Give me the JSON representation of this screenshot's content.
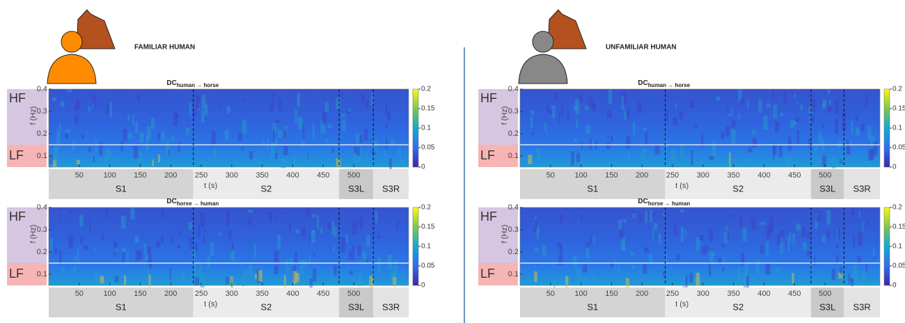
{
  "panels": [
    {
      "title": "FAMILIAR HUMAN"
    },
    {
      "title": "UNFAMILIAR HUMAN"
    }
  ],
  "chart_data": [
    {
      "type": "heatmap",
      "title": "DC",
      "title_subscript": "human → horse",
      "x_label": "t (s)",
      "y_label": "f (Hz)",
      "xlim": [
        0,
        590
      ],
      "xticks": [
        50,
        100,
        150,
        200,
        250,
        300,
        350,
        400,
        450,
        500
      ],
      "ylim": [
        0.05,
        0.4
      ],
      "yticks": [
        0.1,
        0.2,
        0.3,
        0.4
      ],
      "clim": [
        0,
        0.2
      ],
      "cticks": [
        0,
        0.05,
        0.1,
        0.15,
        0.2
      ],
      "band_split": 0.15,
      "band_labels": [
        "HF",
        "LF"
      ],
      "boundaries": [
        237,
        476,
        532
      ],
      "segments": [
        "S1",
        "S2",
        "S3L",
        "S3R"
      ]
    },
    {
      "type": "heatmap",
      "title": "DC",
      "title_subscript": "horse → human",
      "x_label": "t (s)",
      "y_label": "f (Hz)",
      "xlim": [
        0,
        590
      ],
      "xticks": [
        50,
        100,
        150,
        200,
        250,
        300,
        350,
        400,
        450,
        500
      ],
      "ylim": [
        0.05,
        0.4
      ],
      "yticks": [
        0.1,
        0.2,
        0.3,
        0.4
      ],
      "clim": [
        0,
        0.2
      ],
      "cticks": [
        0,
        0.05,
        0.1,
        0.15,
        0.2
      ],
      "band_split": 0.15,
      "band_labels": [
        "HF",
        "LF"
      ],
      "boundaries": [
        237,
        476,
        532
      ],
      "segments": [
        "S1",
        "S2",
        "S3L",
        "S3R"
      ]
    },
    {
      "type": "heatmap",
      "title": "DC",
      "title_subscript": "human → horse",
      "x_label": "t (s)",
      "y_label": "f (Hz)",
      "xlim": [
        0,
        590
      ],
      "xticks": [
        50,
        100,
        150,
        200,
        250,
        300,
        350,
        400,
        450,
        500
      ],
      "ylim": [
        0.05,
        0.4
      ],
      "yticks": [
        0.1,
        0.2,
        0.3,
        0.4
      ],
      "clim": [
        0,
        0.2
      ],
      "cticks": [
        0,
        0.05,
        0.1,
        0.15,
        0.2
      ],
      "band_split": 0.15,
      "band_labels": [
        "HF",
        "LF"
      ],
      "boundaries": [
        238,
        477,
        531
      ],
      "segments": [
        "S1",
        "S2",
        "S3L",
        "S3R"
      ]
    },
    {
      "type": "heatmap",
      "title": "DC",
      "title_subscript": "horse → human",
      "x_label": "t (s)",
      "y_label": "f (Hz)",
      "xlim": [
        0,
        590
      ],
      "xticks": [
        50,
        100,
        150,
        200,
        250,
        300,
        350,
        400,
        450,
        500
      ],
      "ylim": [
        0.05,
        0.4
      ],
      "yticks": [
        0.1,
        0.2,
        0.3,
        0.4
      ],
      "clim": [
        0,
        0.2
      ],
      "cticks": [
        0,
        0.05,
        0.1,
        0.15,
        0.2
      ],
      "band_split": 0.15,
      "band_labels": [
        "HF",
        "LF"
      ],
      "boundaries": [
        238,
        477,
        531
      ],
      "segments": [
        "S1",
        "S2",
        "S3L",
        "S3R"
      ]
    }
  ]
}
